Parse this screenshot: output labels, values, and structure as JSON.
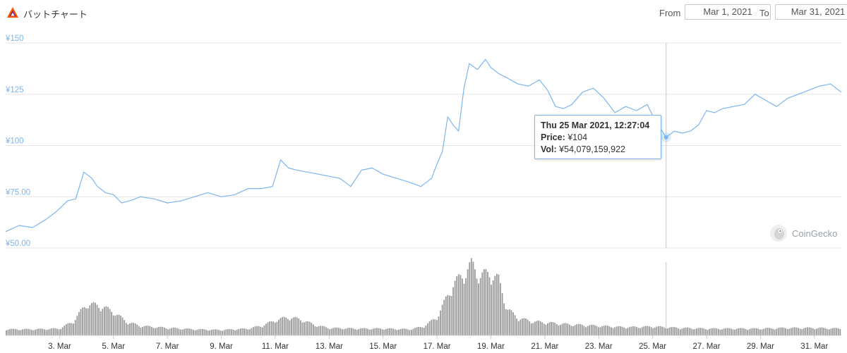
{
  "header": {
    "title": "バットチャート",
    "logo_icon": "bat-triangle-icon",
    "from_label": "From",
    "from_value": "Mar 1, 2021",
    "to_label": "To",
    "to_value": "Mar 31, 2021"
  },
  "tooltip": {
    "date": "Thu 25 Mar 2021, 12:27:04",
    "price_label": "Price:",
    "price_value": "¥104",
    "vol_label": "Vol:",
    "vol_value": "¥54,079,159,922"
  },
  "watermark": {
    "text": "CoinGecko",
    "icon": "gecko-icon"
  },
  "colors": {
    "line": "#7cb5ec",
    "volume": "#9a9a9a",
    "grid": "#e6e6e6",
    "axis_label": "#7cb5ec",
    "crosshair": "#c8c8c8"
  },
  "chart_data": {
    "type": "line",
    "ylim": [
      50,
      150
    ],
    "y_ticks": [
      50,
      75,
      100,
      125,
      150
    ],
    "y_tick_labels": [
      "¥50.00",
      "¥75.00",
      "¥100",
      "¥125",
      "¥150"
    ],
    "xlim": [
      1,
      32
    ],
    "x_ticks": [
      3,
      5,
      7,
      9,
      11,
      13,
      15,
      17,
      19,
      21,
      23,
      25,
      27,
      29,
      31
    ],
    "x_tick_labels": [
      "3. Mar",
      "5. Mar",
      "7. Mar",
      "9. Mar",
      "11. Mar",
      "13. Mar",
      "15. Mar",
      "17. Mar",
      "19. Mar",
      "21. Mar",
      "23. Mar",
      "25. Mar",
      "27. Mar",
      "29. Mar",
      "31. Mar"
    ],
    "crosshair_x": 25.5,
    "hover_point": {
      "x": 25.5,
      "y": 104
    },
    "series": [
      {
        "type": "line",
        "x": [
          1.0,
          1.5,
          2.0,
          2.5,
          2.9,
          3.3,
          3.6,
          3.9,
          4.2,
          4.4,
          4.7,
          5.0,
          5.3,
          5.6,
          6.0,
          6.5,
          7.0,
          7.5,
          8.0,
          8.5,
          9.0,
          9.5,
          10.0,
          10.5,
          10.9,
          11.2,
          11.5,
          11.8,
          12.2,
          12.6,
          13.0,
          13.4,
          13.8,
          14.2,
          14.6,
          15.0,
          15.5,
          16.0,
          16.4,
          16.8,
          17.0,
          17.2,
          17.4,
          17.6,
          17.8,
          18.0,
          18.2,
          18.5,
          18.8,
          19.0,
          19.3,
          19.6,
          20.0,
          20.4,
          20.8,
          21.1,
          21.4,
          21.7,
          22.0,
          22.4,
          22.8,
          23.2,
          23.6,
          24.0,
          24.4,
          24.8,
          25.1,
          25.5,
          25.8,
          26.1,
          26.4,
          26.7,
          27.0,
          27.3,
          27.6,
          28.0,
          28.4,
          28.8,
          29.2,
          29.6,
          30.0,
          30.4,
          30.8,
          31.2,
          31.6,
          32.0
        ],
        "y": [
          58,
          61,
          60,
          64,
          68,
          73,
          74,
          87,
          84,
          80,
          77,
          76,
          72,
          73,
          75,
          74,
          72,
          73,
          75,
          77,
          75,
          76,
          79,
          79,
          80,
          93,
          89,
          88,
          87,
          86,
          85,
          84,
          80,
          88,
          89,
          86,
          84,
          82,
          80,
          84,
          91,
          97,
          114,
          110,
          107,
          128,
          140,
          137,
          142,
          138,
          135,
          133,
          130,
          129,
          132,
          127,
          119,
          118,
          120,
          126,
          128,
          123,
          116,
          119,
          117,
          120,
          112,
          104,
          107,
          106,
          107,
          110,
          117,
          116,
          118,
          119,
          120,
          125,
          122,
          119,
          123,
          125,
          127,
          129,
          130,
          126
        ]
      },
      {
        "type": "volume",
        "x": [
          1,
          2,
          3,
          3.5,
          4,
          4.5,
          5,
          5.5,
          6,
          7,
          8,
          9,
          10,
          10.5,
          11,
          11.5,
          12,
          12.5,
          13,
          14,
          15,
          16,
          16.5,
          17,
          17.3,
          17.6,
          18,
          18.3,
          18.6,
          19,
          19.3,
          19.6,
          20,
          20.5,
          21,
          22,
          23,
          24,
          25,
          26,
          27,
          28,
          29,
          30,
          31,
          32
        ],
        "y": [
          0.9,
          0.9,
          1.0,
          2.0,
          4.6,
          4.4,
          3.5,
          2.0,
          1.4,
          1.1,
          0.9,
          0.8,
          1.0,
          1.4,
          2.2,
          2.7,
          2.3,
          1.5,
          1.1,
          1.0,
          1.0,
          0.9,
          1.3,
          2.6,
          5.0,
          7.5,
          9.0,
          10.5,
          8.8,
          9.2,
          8.2,
          4.0,
          2.6,
          2.1,
          1.9,
          1.6,
          1.4,
          1.2,
          1.3,
          1.1,
          1.0,
          1.0,
          1.0,
          1.1,
          1.1,
          1.0
        ]
      }
    ]
  }
}
